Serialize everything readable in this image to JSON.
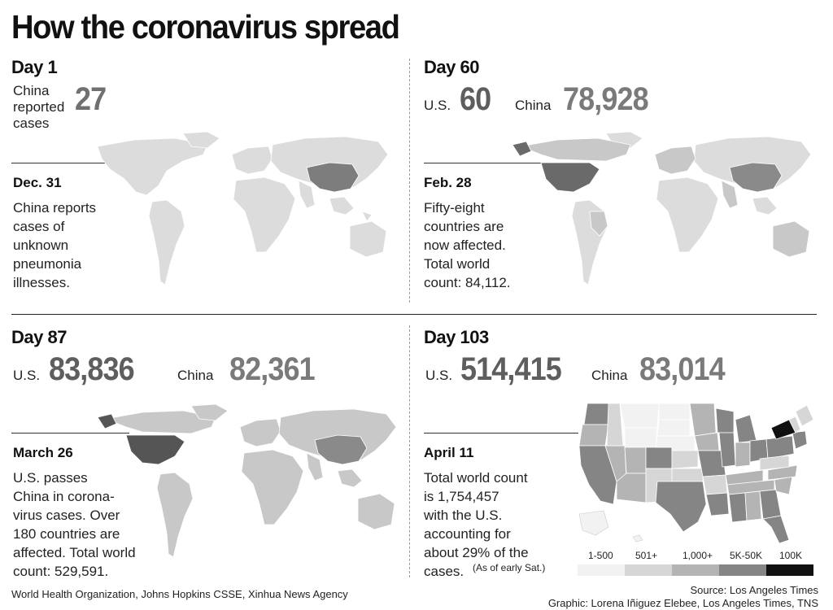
{
  "title": "How the coronavirus spread",
  "panels": {
    "day1": {
      "day": "Day 1",
      "china_label": "China\nreported\ncases",
      "china_value": "27",
      "date": "Dec. 31",
      "text": "China reports\ncases of\nunknown\npneumonia\nillnesses."
    },
    "day60": {
      "day": "Day 60",
      "us_label": "U.S.",
      "us_value": "60",
      "china_label": "China",
      "china_value": "78,928",
      "date": "Feb. 28",
      "text": "Fifty-eight\ncountries are\nnow affected.\nTotal world\ncount: 84,112."
    },
    "day87": {
      "day": "Day 87",
      "us_label": "U.S.",
      "us_value": "83,836",
      "china_label": "China",
      "china_value": "82,361",
      "date": "March 26",
      "text": "U.S. passes\nChina in corona-\nvirus cases. Over\n180 countries are\naffected. Total world\ncount: 529,591."
    },
    "day103": {
      "day": "Day 103",
      "us_label": "U.S.",
      "us_value": "514,415",
      "china_label": "China",
      "china_value": "83,014",
      "date": "April 11",
      "text": "Total world count\nis 1,754,457\nwith the U.S.\naccounting for\nabout 29% of the\ncases.",
      "note": "(As of early Sat.)"
    }
  },
  "legend": {
    "items": [
      {
        "label": "1-500",
        "color": "#f2f2f2"
      },
      {
        "label": "501+",
        "color": "#d6d6d6"
      },
      {
        "label": "1,000+",
        "color": "#b4b4b4"
      },
      {
        "label": "5K-50K",
        "color": "#858585"
      },
      {
        "label": "100K",
        "color": "#111111"
      }
    ]
  },
  "footer": {
    "left": "World Health Organization, Johns Hopkins CSSE, Xinhua News Agency",
    "source": "Source: Los Angeles Times",
    "credit": "Graphic: Lorena Iñiguez Elebee, Los Angeles Times, TNS"
  },
  "colors": {
    "land": "#dcdcdc",
    "china_1": "#7d7d7d",
    "us_60": "#6a6a6a",
    "china_60": "#8a8a8a",
    "other_60": "#c8c8c8",
    "us_87": "#555555",
    "china_87": "#8a8a8a",
    "ny": "#111111"
  }
}
